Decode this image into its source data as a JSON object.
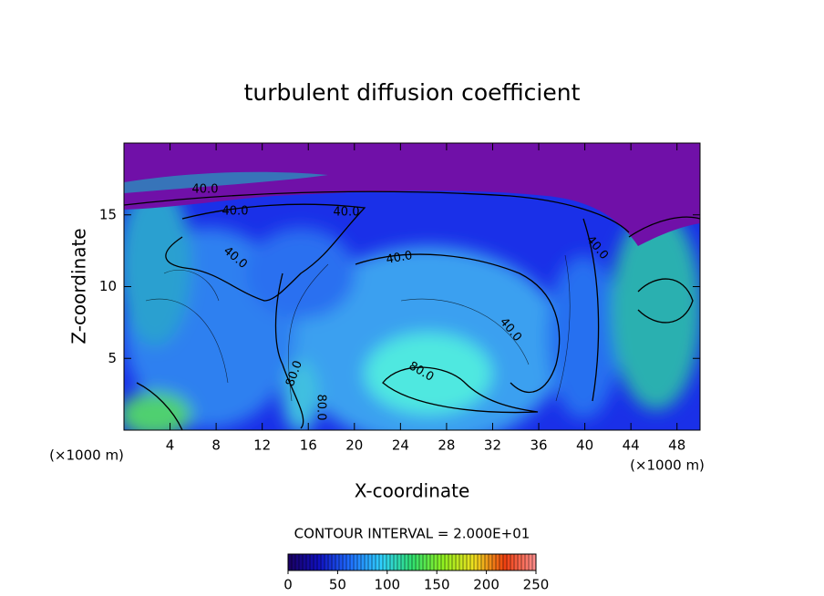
{
  "chart_data": {
    "type": "contour",
    "title": "turbulent diffusion coefficient",
    "x_label": "X-coordinate",
    "y_label": "Z-coordinate",
    "x_unit": "(×1000 m)",
    "y_unit": "(×1000 m)",
    "contour_note": "CONTOUR INTERVAL = 2.000E+01",
    "xlim": [
      0,
      50
    ],
    "xticks": [
      4,
      8,
      12,
      16,
      20,
      24,
      28,
      32,
      36,
      40,
      44,
      48
    ],
    "ylim": [
      0,
      20
    ],
    "yticks": [
      5,
      10,
      15
    ],
    "annotations": [
      "40.0",
      "40.0",
      "40.0",
      "40.0",
      "40.0",
      "40.0",
      "40.0",
      "80.0",
      "80.0",
      "80.0"
    ],
    "colorbar": {
      "lim": [
        0,
        250
      ],
      "ticks": [
        0,
        50,
        100,
        150,
        200,
        250
      ],
      "colors": [
        "#1a0060",
        "#1010c0",
        "#1f6fff",
        "#30d0ff",
        "#30e070",
        "#90f020",
        "#f0e020",
        "#f04010",
        "#ff9090"
      ]
    }
  }
}
